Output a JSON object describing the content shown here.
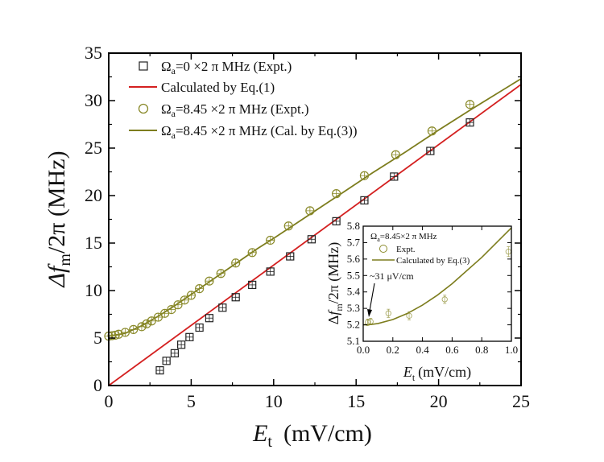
{
  "chart_data": [
    {
      "type": "scatter",
      "title": "",
      "xlabel_main": "E",
      "xlabel_sub": "t",
      "xlabel_unit": "(mV/cm)",
      "ylabel_html": [
        "Δ",
        "f",
        "m",
        "/2π (MHz)"
      ],
      "xlim": [
        0,
        25
      ],
      "ylim": [
        0,
        35
      ],
      "x_ticks": [
        "0",
        "5",
        "10",
        "15",
        "20",
        "25"
      ],
      "y_ticks": [
        "0",
        "5",
        "10",
        "15",
        "20",
        "25",
        "30",
        "35"
      ],
      "grid": false,
      "legend_position": "top-left",
      "series": [
        {
          "name_parts": [
            "Ω",
            "a",
            "=0 ×2 π MHz (Expt.)"
          ],
          "kind": "scatter",
          "marker": "square-cross",
          "color": "#222222",
          "x": [
            3.1,
            3.5,
            4.0,
            4.4,
            4.9,
            5.5,
            6.1,
            6.9,
            7.7,
            8.7,
            9.8,
            11.0,
            12.3,
            13.8,
            15.5,
            17.3,
            19.5,
            21.9
          ],
          "y": [
            1.6,
            2.6,
            3.4,
            4.3,
            5.1,
            6.1,
            7.1,
            8.2,
            9.3,
            10.6,
            12.0,
            13.6,
            15.4,
            17.3,
            19.5,
            22.0,
            24.7,
            27.7
          ]
        },
        {
          "name_parts": [
            "Calculated by Eq.(1)"
          ],
          "kind": "line",
          "color": "#d42020",
          "x": [
            0,
            25
          ],
          "y": [
            0,
            31.7
          ]
        },
        {
          "name_parts": [
            "Ω",
            "a",
            "=8.45 ×2 π MHz (Expt.)"
          ],
          "kind": "scatter",
          "marker": "circle-cross",
          "color": "#8a8a2a",
          "x": [
            0.0,
            0.2,
            0.4,
            0.6,
            1.0,
            1.5,
            2.0,
            2.3,
            2.6,
            3.0,
            3.4,
            3.8,
            4.2,
            4.6,
            5.0,
            5.5,
            6.1,
            6.8,
            7.7,
            8.7,
            9.8,
            10.9,
            12.2,
            13.8,
            15.5,
            17.4,
            19.6,
            21.9
          ],
          "y": [
            5.2,
            5.25,
            5.3,
            5.4,
            5.6,
            5.9,
            6.2,
            6.5,
            6.8,
            7.2,
            7.6,
            8.0,
            8.5,
            9.0,
            9.5,
            10.2,
            11.0,
            11.8,
            12.9,
            14.0,
            15.3,
            16.8,
            18.4,
            20.2,
            22.1,
            24.3,
            26.8,
            29.6
          ]
        },
        {
          "name_parts": [
            "Ω",
            "a",
            "=8.45 ×2 π MHz (Cal. by Eq.(3))"
          ],
          "kind": "line",
          "color": "#7d7d1e",
          "x": [
            0,
            1,
            2,
            3,
            4,
            5,
            6,
            7,
            8,
            9,
            10,
            12,
            14,
            16,
            18,
            20,
            22,
            25
          ],
          "y": [
            5.2,
            5.5,
            6.3,
            7.3,
            8.4,
            9.6,
            10.8,
            12.0,
            13.2,
            14.4,
            15.5,
            17.8,
            20.1,
            22.4,
            24.6,
            26.9,
            29.1,
            32.3
          ]
        }
      ]
    },
    {
      "type": "scatter",
      "title": "",
      "xlabel_main": "E",
      "xlabel_sub": "t",
      "xlabel_unit": "(mV/cm)",
      "ylabel_html": [
        "Δ",
        "f",
        "m",
        "/2π (MHz)"
      ],
      "xlim": [
        0,
        1.0
      ],
      "ylim": [
        5.1,
        5.8
      ],
      "x_ticks": [
        "0.0",
        "0.2",
        "0.4",
        "0.6",
        "0.8",
        "1.0"
      ],
      "y_ticks": [
        "5.1",
        "5.2",
        "5.3",
        "5.4",
        "5.5",
        "5.6",
        "5.7",
        "5.8"
      ],
      "grid": false,
      "legend_position": "top-left",
      "header_parts": [
        "Ω",
        "a",
        "=8.45×2 π MHz"
      ],
      "annotation": "~31 μV/cm",
      "series": [
        {
          "name_parts": [
            "Expt."
          ],
          "kind": "scatter",
          "marker": "circle-errorbar",
          "color": "#8a8a2a",
          "x": [
            0.03,
            0.05,
            0.17,
            0.31,
            0.55,
            0.98
          ],
          "y": [
            5.215,
            5.22,
            5.27,
            5.255,
            5.355,
            5.645
          ],
          "yerr": [
            0.02,
            0.02,
            0.025,
            0.025,
            0.025,
            0.03
          ]
        },
        {
          "name_parts": [
            "Calculated by Eq.(3)"
          ],
          "kind": "line",
          "color": "#7d7d1e",
          "x": [
            0,
            0.05,
            0.1,
            0.2,
            0.3,
            0.4,
            0.5,
            0.6,
            0.7,
            0.8,
            0.9,
            1.0
          ],
          "y": [
            5.2,
            5.202,
            5.208,
            5.232,
            5.27,
            5.32,
            5.38,
            5.45,
            5.53,
            5.61,
            5.7,
            5.79
          ]
        }
      ]
    }
  ]
}
